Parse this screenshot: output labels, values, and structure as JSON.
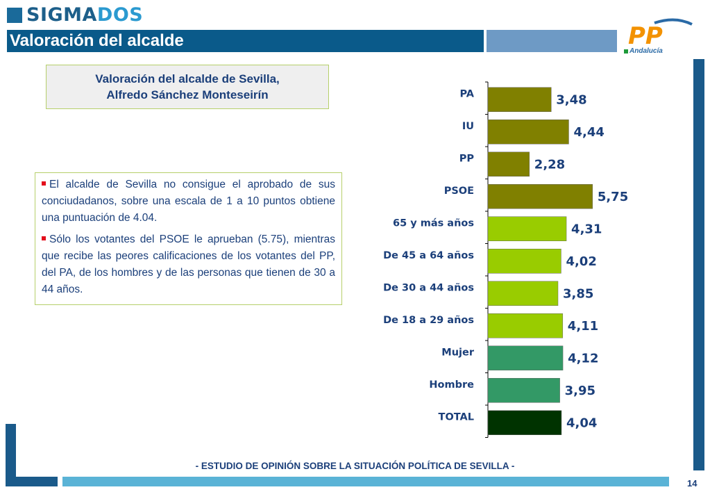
{
  "header": {
    "logo_dark": "SIGMA",
    "logo_light": "DOS",
    "title": "Valoración del alcalde",
    "party_logo": "PP",
    "party_sub": "Andalucía"
  },
  "subtitle": {
    "line1": "Valoración del alcalde de Sevilla,",
    "line2": "Alfredo Sánchez Monteseirín"
  },
  "bullets": [
    "El alcalde de Sevilla no consigue el aprobado de sus conciudadanos, sobre una escala de 1 a 10 puntos obtiene una puntuación de 4.04.",
    "Sólo los votantes del PSOE le aprueban (5.75), mientras que recibe las  peores calificaciones de los votantes del PP, del PA, de los hombres y de las personas que tienen de 30 a 44 años."
  ],
  "chart_data": {
    "type": "bar",
    "orientation": "horizontal",
    "categories": [
      "PA",
      "IU",
      "PP",
      "PSOE",
      "65 y más años",
      "De 45 a 64 años",
      "De 30 a 44 años",
      "De 18 a 29 años",
      "Mujer",
      "Hombre",
      "TOTAL"
    ],
    "values": [
      3.48,
      4.44,
      2.28,
      5.75,
      4.31,
      4.02,
      3.85,
      4.11,
      4.12,
      3.95,
      4.04
    ],
    "value_labels": [
      "3,48",
      "4,44",
      "2,28",
      "5,75",
      "4,31",
      "4,02",
      "3,85",
      "4,11",
      "4,12",
      "3,95",
      "4,04"
    ],
    "colors": [
      "#808000",
      "#808000",
      "#808000",
      "#808000",
      "#99cc00",
      "#99cc00",
      "#99cc00",
      "#99cc00",
      "#339966",
      "#339966",
      "#003300"
    ],
    "xlim": [
      0,
      6.1
    ],
    "grid": false
  },
  "footer": {
    "text": "- ESTUDIO DE OPINIÓN SOBRE LA SITUACIÓN POLÍTICA DE SEVILLA  -",
    "page": "14"
  }
}
